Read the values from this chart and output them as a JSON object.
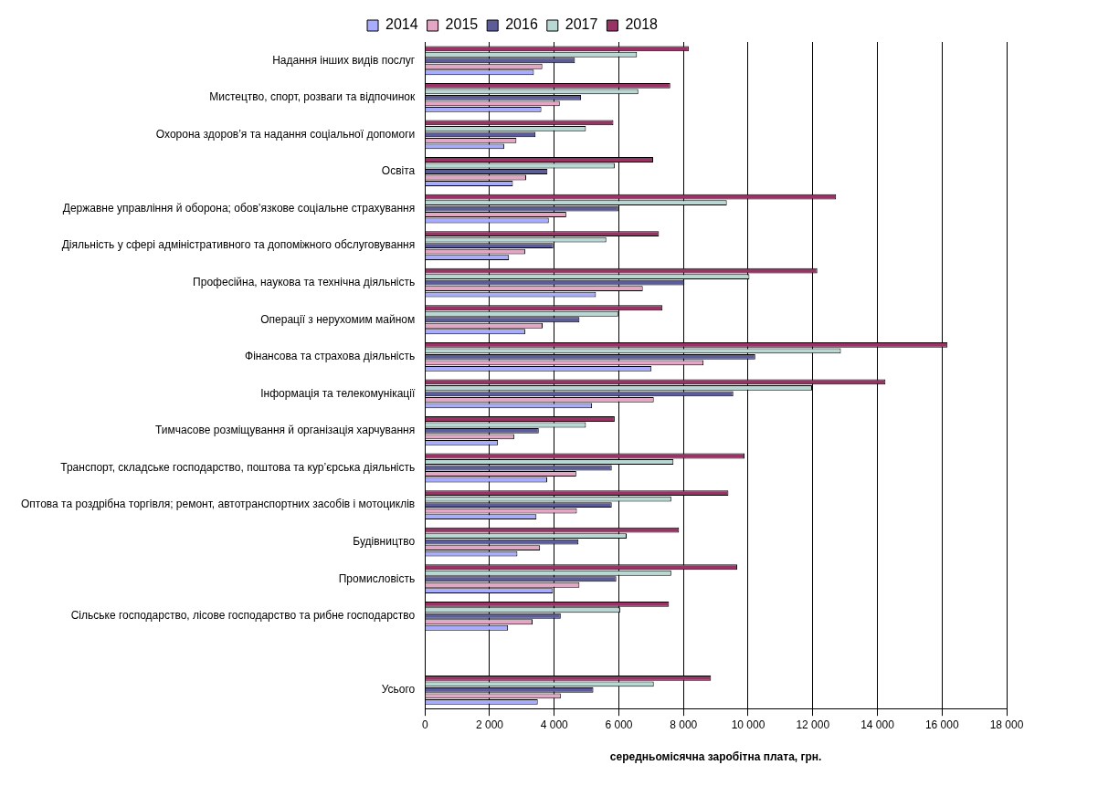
{
  "chart_data": {
    "type": "bar",
    "orientation": "horizontal",
    "xlabel": "середньомісячна заробітна плата, грн.",
    "categories": [
      "Надання інших видів послуг",
      "Мистецтво, спорт, розваги та відпочинок",
      "Охорона здоров’я та надання соціальної допомоги",
      "Освіта",
      "Державне управління й оборона; обов’язкове соціальне страхування",
      "Діяльність у сфері адміністративного та допоміжного обслуговування",
      "Професійна, наукова та технічна діяльність",
      "Операції з нерухомим майном",
      "Фінансова та страхова діяльність",
      "Інформація та телекомунікації",
      "Тимчасове розміщування й організація харчування",
      "Транспорт, складське господарство, поштова та кур’єрська діяльність",
      "Оптова та роздрібна торгівля; ремонт, автотранспортних засобів і мотоциклів",
      "Будівництво",
      "Промисловість",
      "Сільське господарство, лісове господарство та рибне господарство",
      null,
      "Усього"
    ],
    "series": [
      {
        "name": "2014",
        "color": "#a8acff",
        "values": [
          3370,
          3600,
          2450,
          2720,
          3830,
          2600,
          5290,
          3100,
          7010,
          5170,
          2260,
          3780,
          3450,
          2860,
          3960,
          2570,
          null,
          3490
        ]
      },
      {
        "name": "2015",
        "color": "#e3a6c4",
        "values": [
          3630,
          4170,
          2830,
          3130,
          4370,
          3100,
          6740,
          3640,
          8620,
          7080,
          2760,
          4680,
          4700,
          3560,
          4780,
          3330,
          null,
          4200
        ]
      },
      {
        "name": "2016",
        "color": "#5c5c99",
        "values": [
          4640,
          4830,
          3420,
          3790,
          5980,
          3970,
          8030,
          4780,
          10220,
          9540,
          3520,
          5780,
          5780,
          4750,
          5920,
          4200,
          null,
          5210
        ]
      },
      {
        "name": "2017",
        "color": "#b8d8d4",
        "values": [
          6560,
          6600,
          4980,
          5870,
          9340,
          5610,
          10040,
          5980,
          12870,
          11980,
          4980,
          7690,
          7620,
          6240,
          7620,
          6040,
          null,
          7080
        ]
      },
      {
        "name": "2018",
        "color": "#993366",
        "values": [
          8160,
          7590,
          5830,
          7060,
          12720,
          7240,
          12140,
          7350,
          16170,
          14250,
          5870,
          9890,
          9390,
          7860,
          9660,
          7550,
          null,
          8850
        ]
      }
    ],
    "xlim": [
      0,
      18000
    ],
    "xticks": [
      0,
      {
        "value": 2000,
        "label": "2 000"
      },
      {
        "value": 4000,
        "label": "4 000"
      },
      {
        "value": 6000,
        "label": "6 000"
      },
      {
        "value": 8000,
        "label": "8 000"
      },
      {
        "value": 10000,
        "label": "10 000"
      },
      {
        "value": 12000,
        "label": "12 000"
      },
      {
        "value": 14000,
        "label": "14 000"
      },
      {
        "value": 16000,
        "label": "16 000"
      },
      {
        "value": 18000,
        "label": "18 000"
      }
    ],
    "grid": "x",
    "legend": "top"
  }
}
